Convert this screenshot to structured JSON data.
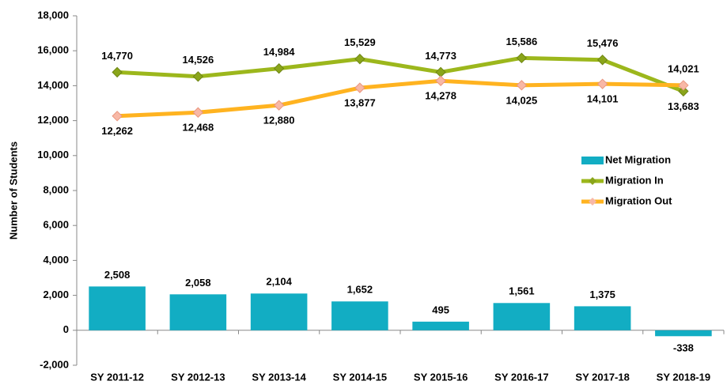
{
  "chart_data": {
    "type": "bar",
    "y_label": "Number of Students",
    "categories": [
      "SY 2011-12",
      "SY 2012-13",
      "SY 2013-14",
      "SY 2014-15",
      "SY 2015-16",
      "SY 2016-17",
      "SY 2017-18",
      "SY 2018-19"
    ],
    "series": [
      {
        "name": "Net Migration",
        "type": "bar",
        "color": "#12adc3",
        "values": [
          2508,
          2058,
          2104,
          1652,
          495,
          1561,
          1375,
          -338
        ],
        "value_labels": [
          "2,508",
          "2,058",
          "2,104",
          "1,652",
          "495",
          "1,561",
          "1,375",
          "-338"
        ]
      },
      {
        "name": "Migration In",
        "type": "line",
        "color": "#9cb71c",
        "values": [
          14770,
          14526,
          14984,
          15529,
          14773,
          15586,
          15476,
          13683
        ],
        "value_labels": [
          "14,770",
          "14,526",
          "14,984",
          "15,529",
          "14,773",
          "15,586",
          "15,476",
          "13,683"
        ]
      },
      {
        "name": "Migration Out",
        "type": "line",
        "color": "#ffb320",
        "values": [
          12262,
          12468,
          12880,
          13877,
          14278,
          14025,
          14101,
          14021
        ],
        "value_labels": [
          "12,262",
          "12,468",
          "12,880",
          "13,877",
          "14,278",
          "14,025",
          "14,101",
          "14,021"
        ]
      }
    ],
    "ylim": [
      -2000,
      18000
    ],
    "yticks": [
      {
        "value": -2000,
        "label": "-2,000"
      },
      0,
      {
        "value": 2000,
        "label": "2,000"
      },
      {
        "value": 4000,
        "label": "4,000"
      },
      {
        "value": 6000,
        "label": "6,000"
      },
      {
        "value": 8000,
        "label": "8,000"
      },
      {
        "value": 10000,
        "label": "10,000"
      },
      {
        "value": 12000,
        "label": "12,000"
      },
      {
        "value": 14000,
        "label": "14,000"
      },
      {
        "value": 16000,
        "label": "16,000"
      },
      {
        "value": 18000,
        "label": "18,000"
      }
    ],
    "legend": "right"
  }
}
